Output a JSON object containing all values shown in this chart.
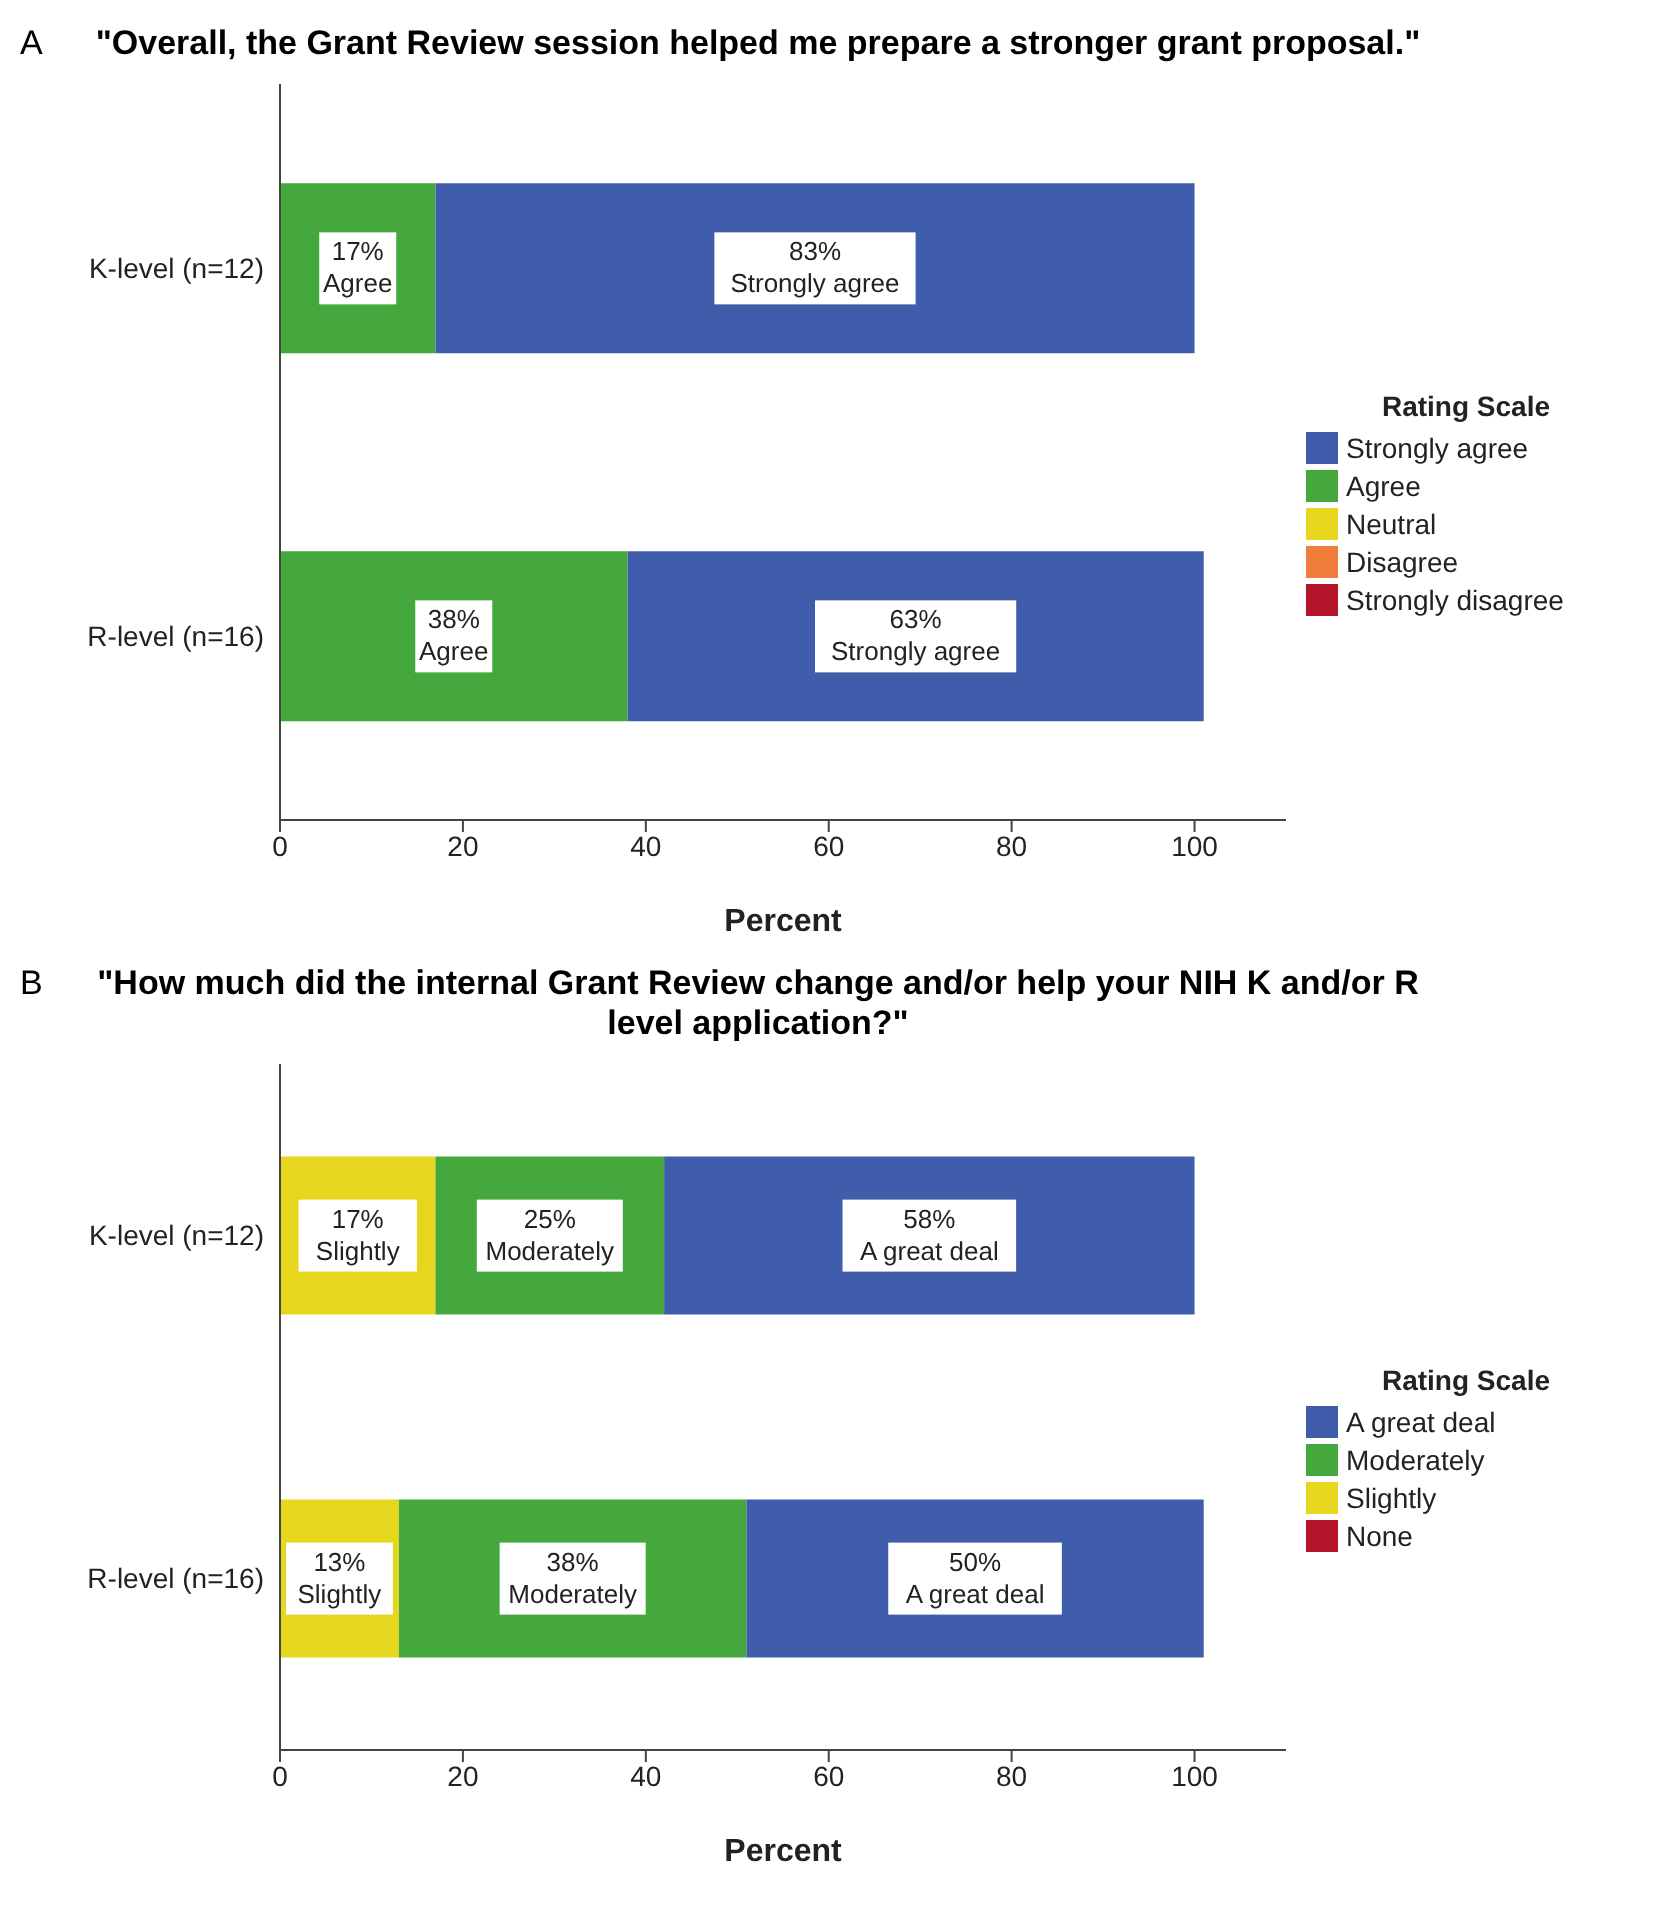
{
  "chart_data": [
    {
      "type": "bar",
      "orientation": "horizontal",
      "stacked": true,
      "title": "\"Overall, the Grant Review session helped me prepare a stronger grant proposal.\"",
      "annotations": [
        "A"
      ],
      "xlabel": "Percent",
      "legend_title": "Rating Scale",
      "legend": "right",
      "xlim": [
        0,
        110
      ],
      "xticks": [
        0,
        20,
        40,
        60,
        80,
        100
      ],
      "categories": [
        "K-level (n=12)",
        "R-level (n=16)"
      ],
      "series": [
        {
          "name": "Strongly disagree",
          "color": "#b5152b",
          "values": [
            0,
            0
          ]
        },
        {
          "name": "Disagree",
          "color": "#f07c3a",
          "values": [
            0,
            0
          ]
        },
        {
          "name": "Neutral",
          "color": "#e6d61e",
          "values": [
            0,
            0
          ]
        },
        {
          "name": "Agree",
          "color": "#45a83c",
          "values": [
            17,
            38
          ],
          "value_labels": [
            "17%",
            "38%"
          ]
        },
        {
          "name": "Strongly agree",
          "color": "#3f5dab",
          "values": [
            83,
            63
          ],
          "value_labels": [
            "83%",
            "63%"
          ]
        }
      ]
    },
    {
      "type": "bar",
      "orientation": "horizontal",
      "stacked": true,
      "title": "\"How much did the internal Grant Review change and/or help your NIH K and/or R level application?\"",
      "annotations": [
        "B"
      ],
      "xlabel": "Percent",
      "legend_title": "Rating Scale",
      "legend": "right",
      "xlim": [
        0,
        110
      ],
      "xticks": [
        0,
        20,
        40,
        60,
        80,
        100
      ],
      "categories": [
        "K-level (n=12)",
        "R-level (n=16)"
      ],
      "series": [
        {
          "name": "None",
          "color": "#b5152b",
          "values": [
            0,
            0
          ]
        },
        {
          "name": "Slightly",
          "color": "#e6d61e",
          "values": [
            17,
            13
          ],
          "value_labels": [
            "17%",
            "13%"
          ]
        },
        {
          "name": "Moderately",
          "color": "#45a83c",
          "values": [
            25,
            38
          ],
          "value_labels": [
            "25%",
            "38%"
          ]
        },
        {
          "name": "A great deal",
          "color": "#3f5dab",
          "values": [
            58,
            50
          ],
          "value_labels": [
            "58%",
            "50%"
          ]
        }
      ]
    }
  ]
}
